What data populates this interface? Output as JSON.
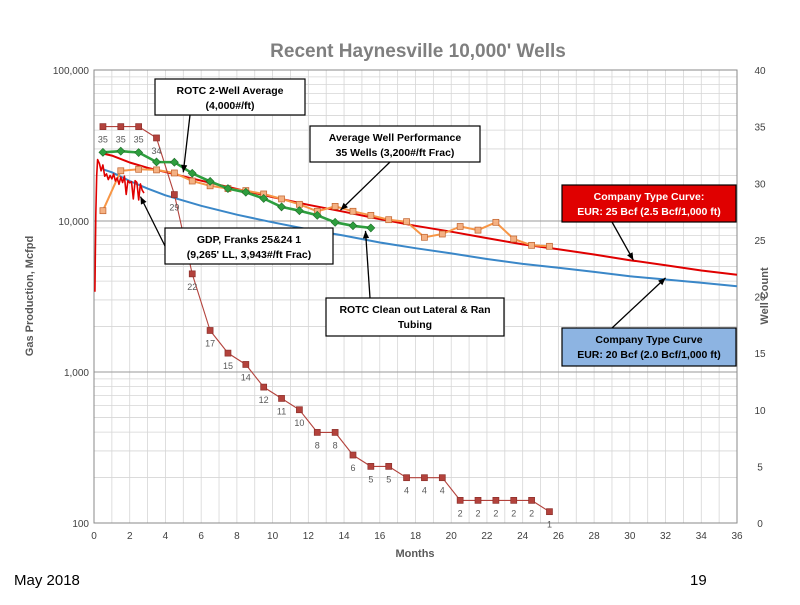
{
  "footer": {
    "date": "May 2018",
    "page": "19"
  },
  "colors": {
    "orange": "#f79646",
    "green": "#2e9e3e",
    "red": "#e00000",
    "blue": "#3a87c8",
    "wellcount": "#b3423c",
    "grid": "#d6d6d6"
  },
  "chart_data": {
    "type": "line",
    "title": "Recent Haynesville 10,000' Wells",
    "xlabel": "Months",
    "ylabel": "Gas Production, Mcfpd",
    "y2label": "Well Count",
    "xlim": [
      0,
      36
    ],
    "ylim": [
      100,
      100000
    ],
    "yscale": "log",
    "y2lim": [
      0,
      40
    ],
    "grid": true,
    "x_ticks": [
      0,
      2,
      4,
      6,
      8,
      10,
      12,
      14,
      16,
      18,
      20,
      22,
      24,
      26,
      28,
      30,
      32,
      34,
      36
    ],
    "y_ticks": [
      {
        "v": 100,
        "label": "100"
      },
      {
        "v": 1000,
        "label": "1,000"
      },
      {
        "v": 10000,
        "label": "10,000"
      },
      {
        "v": 100000,
        "label": "100,000"
      }
    ],
    "y2_ticks": [
      0,
      5,
      10,
      15,
      20,
      25,
      30,
      35,
      40
    ],
    "series": [
      {
        "name": "Average Well Performance",
        "axis": "left",
        "color": "#f79646",
        "marker": "square",
        "x": [
          0.5,
          1.5,
          2.5,
          3.5,
          4.5,
          5.5,
          6.5,
          7.5,
          8.5,
          9.5,
          10.5,
          11.5,
          12.5,
          13.5,
          14.5,
          15.5,
          16.5,
          17.5,
          18.5,
          19.5,
          20.5,
          21.5,
          22.5,
          23.5,
          24.5,
          25.5
        ],
        "y": [
          11700,
          21500,
          22000,
          21800,
          20800,
          18400,
          17100,
          16400,
          15900,
          15100,
          14000,
          12900,
          11600,
          12500,
          11600,
          10900,
          10200,
          9900,
          7800,
          8200,
          9200,
          8700,
          9800,
          7600,
          6900,
          6800
        ]
      },
      {
        "name": "ROTC 2-Well Average",
        "axis": "left",
        "color": "#2e9e3e",
        "marker": "diamond",
        "x": [
          0.5,
          1.5,
          2.5,
          3.5,
          4.5,
          5.5,
          6.5,
          7.5,
          8.5,
          9.5,
          10.5,
          11.5,
          12.5,
          13.5,
          14.5,
          15.5
        ],
        "y": [
          28500,
          29000,
          28400,
          24600,
          24500,
          20700,
          18300,
          16400,
          15500,
          14100,
          12400,
          11700,
          10900,
          9800,
          9300,
          9000
        ]
      },
      {
        "name": "Company Type Curve: EUR: 25 Bcf",
        "axis": "left",
        "color": "#e00000",
        "marker": "none",
        "x": [
          0.5,
          1,
          2,
          3,
          4,
          6,
          8,
          10,
          12,
          14,
          16,
          18,
          20,
          22,
          24,
          26,
          28,
          30,
          32,
          34,
          36
        ],
        "y": [
          28000,
          27100,
          24400,
          22500,
          21100,
          18500,
          16300,
          14400,
          12800,
          11500,
          10300,
          9300,
          8500,
          7700,
          7000,
          6500,
          6000,
          5500,
          5100,
          4700,
          4400
        ]
      },
      {
        "name": "Company Type Curve: EUR: 20 Bcf",
        "axis": "left",
        "color": "#3a87c8",
        "marker": "none",
        "x": [
          0.5,
          1,
          2,
          3,
          4,
          6,
          8,
          10,
          12,
          14,
          16,
          18,
          20,
          22,
          24,
          26,
          28,
          30,
          32,
          34,
          36
        ],
        "y": [
          22000,
          21000,
          18400,
          16400,
          14800,
          12600,
          11000,
          9800,
          8800,
          8000,
          7200,
          6600,
          6100,
          5600,
          5200,
          4900,
          4600,
          4300,
          4100,
          3900,
          3700
        ]
      },
      {
        "name": "GDP, Franks 25&24 1",
        "axis": "left",
        "color": "#e00000",
        "marker": "none",
        "x": [
          0.05,
          0.1,
          0.15,
          0.2,
          0.3,
          0.4,
          0.5,
          0.6,
          0.7,
          0.8,
          0.9,
          1.0,
          1.1,
          1.2,
          1.3,
          1.4,
          1.5,
          1.6,
          1.7,
          1.8,
          1.9,
          2.0,
          2.1,
          2.2,
          2.3,
          2.4,
          2.5,
          2.6,
          2.7,
          2.8
        ],
        "y": [
          3400,
          11000,
          20000,
          25500,
          24000,
          21500,
          23500,
          19800,
          20500,
          18800,
          20000,
          19000,
          20500,
          18400,
          19300,
          17500,
          19500,
          18000,
          19800,
          15000,
          18500,
          17900,
          18200,
          14000,
          18500,
          18000,
          13800,
          17600,
          16000,
          15300
        ]
      },
      {
        "name": "Well Count",
        "axis": "right",
        "color": "#b3423c",
        "marker": "square",
        "x": [
          0.5,
          1.5,
          2.5,
          3.5,
          4.5,
          5.5,
          6.5,
          7.5,
          8.5,
          9.5,
          10.5,
          11.5,
          12.5,
          13.5,
          14.5,
          15.5,
          16.5,
          17.5,
          18.5,
          19.5,
          20.5,
          21.5,
          22.5,
          23.5,
          24.5,
          25.5
        ],
        "y": [
          35,
          35,
          35,
          34,
          29,
          22,
          17,
          15,
          14,
          12,
          11,
          10,
          8,
          8,
          6,
          5,
          5,
          4,
          4,
          4,
          2,
          2,
          2,
          2,
          2,
          1
        ]
      }
    ],
    "wellcount_labels": [
      {
        "i": 0,
        "text": "35",
        "pos": "below"
      },
      {
        "i": 1,
        "text": "35",
        "pos": "below"
      },
      {
        "i": 2,
        "text": "35",
        "pos": "below"
      },
      {
        "i": 3,
        "text": "34",
        "pos": "below"
      },
      {
        "i": 4,
        "text": "29",
        "pos": "below"
      },
      {
        "i": 5,
        "text": "22",
        "pos": "below"
      },
      {
        "i": 6,
        "text": "17",
        "pos": "below"
      },
      {
        "i": 7,
        "text": "15",
        "pos": "below"
      },
      {
        "i": 8,
        "text": "14",
        "pos": "below"
      },
      {
        "i": 9,
        "text": "12",
        "pos": "below"
      },
      {
        "i": 10,
        "text": "11",
        "pos": "below"
      },
      {
        "i": 11,
        "text": "10",
        "pos": "below"
      },
      {
        "i": 12,
        "text": "8",
        "pos": "below"
      },
      {
        "i": 13,
        "text": "8",
        "pos": "below"
      },
      {
        "i": 14,
        "text": "6",
        "pos": "below"
      },
      {
        "i": 15,
        "text": "5",
        "pos": "below"
      },
      {
        "i": 16,
        "text": "5",
        "pos": "below"
      },
      {
        "i": 17,
        "text": "4",
        "pos": "below"
      },
      {
        "i": 18,
        "text": "4",
        "pos": "below"
      },
      {
        "i": 19,
        "text": "4",
        "pos": "below"
      },
      {
        "i": 20,
        "text": "2",
        "pos": "below"
      },
      {
        "i": 21,
        "text": "2",
        "pos": "below"
      },
      {
        "i": 22,
        "text": "2",
        "pos": "below"
      },
      {
        "i": 23,
        "text": "2",
        "pos": "below"
      },
      {
        "i": 24,
        "text": "2",
        "pos": "below"
      },
      {
        "i": 25,
        "text": "1",
        "pos": "below"
      }
    ],
    "annotations": [
      {
        "lines": [
          "ROTC 2-Well Average",
          "(4,000#/ft)"
        ],
        "style": "white",
        "target": [
          5,
          21000
        ]
      },
      {
        "lines": [
          "Average Well Performance",
          "35 Wells (3,200#/ft Frac)"
        ],
        "style": "white",
        "target": [
          13.8,
          11800
        ]
      },
      {
        "lines": [
          "GDP, Franks 25&24 1",
          "(9,265' LL, 3,943#/ft Frac)"
        ],
        "style": "white",
        "target": [
          2.6,
          14500
        ]
      },
      {
        "lines": [
          "ROTC Clean out Lateral & Ran",
          "Tubing"
        ],
        "style": "white",
        "target": [
          15.2,
          8600
        ]
      },
      {
        "lines": [
          "Company Type Curve:",
          "EUR: 25 Bcf (2.5 Bcf/1,000 ft)"
        ],
        "style": "red",
        "target": [
          30.2,
          5500
        ]
      },
      {
        "lines": [
          "Company Type Curve",
          "EUR: 20 Bcf (2.0 Bcf/1,000 ft)"
        ],
        "style": "blue",
        "target": [
          32,
          4200
        ]
      }
    ]
  }
}
